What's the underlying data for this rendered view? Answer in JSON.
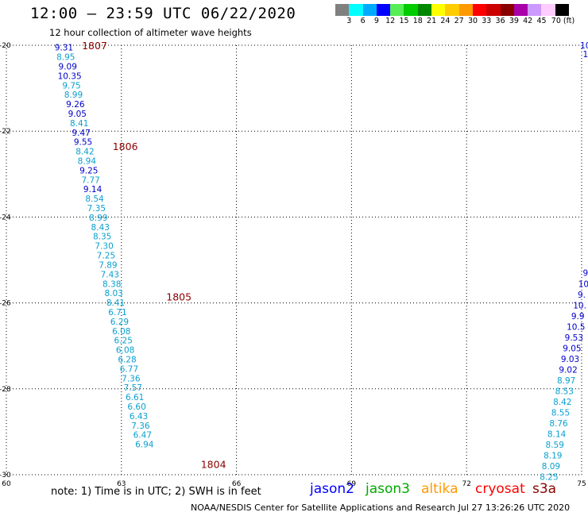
{
  "header": {
    "title": "12:00 – 23:59 UTC 06/22/2020",
    "subtitle": "12 hour collection of altimeter wave heights"
  },
  "colorbar": {
    "colors": [
      "#808080",
      "#00ffff",
      "#00aaff",
      "#0000ff",
      "#55ee55",
      "#00cc00",
      "#008800",
      "#ffff00",
      "#ffcc00",
      "#ff9900",
      "#ff0000",
      "#cc0000",
      "#880000",
      "#aa00aa",
      "#cc99ff",
      "#ffccff",
      "#000000"
    ],
    "labels": [
      "3",
      "6",
      "9",
      "12",
      "15",
      "18",
      "21",
      "24",
      "27",
      "30",
      "33",
      "36",
      "39",
      "42",
      "45",
      "70 (ft)"
    ]
  },
  "map": {
    "x_ticks": [
      "60",
      "63",
      "66",
      "69",
      "72",
      "75"
    ],
    "y_ticks": [
      "-20",
      "-22",
      "-24",
      "-26",
      "-28",
      "-30"
    ],
    "x_values": [
      60,
      63,
      66,
      69,
      72,
      75
    ],
    "y_values": [
      -20,
      -22,
      -24,
      -26,
      -28,
      -30
    ],
    "lon_range": [
      60,
      75
    ],
    "lat_range": [
      -30,
      -20
    ],
    "colors": {
      "jason2": "#0000cc",
      "jason3": "#0aa0ce",
      "cryosat": "#8b0000"
    },
    "track_west": [
      {
        "lon": 61.5,
        "lat": -20.05,
        "v": "9.31",
        "s": "jason2"
      },
      {
        "lon": 61.55,
        "lat": -20.27,
        "v": "8.95",
        "s": "jason3"
      },
      {
        "lon": 61.6,
        "lat": -20.49,
        "v": "9.09",
        "s": "jason2"
      },
      {
        "lon": 61.65,
        "lat": -20.71,
        "v": "10.35",
        "s": "jason2"
      },
      {
        "lon": 61.7,
        "lat": -20.93,
        "v": "9.75",
        "s": "jason3"
      },
      {
        "lon": 61.75,
        "lat": -21.15,
        "v": "8.99",
        "s": "jason3"
      },
      {
        "lon": 61.8,
        "lat": -21.37,
        "v": "9.26",
        "s": "jason2"
      },
      {
        "lon": 61.85,
        "lat": -21.59,
        "v": "9.05",
        "s": "jason2"
      },
      {
        "lon": 61.9,
        "lat": -21.81,
        "v": "8.41",
        "s": "jason3"
      },
      {
        "lon": 61.95,
        "lat": -22.03,
        "v": "9.47",
        "s": "jason2"
      },
      {
        "lon": 62.0,
        "lat": -22.25,
        "v": "9.55",
        "s": "jason2"
      },
      {
        "lon": 62.05,
        "lat": -22.47,
        "v": "8.42",
        "s": "jason3"
      },
      {
        "lon": 62.1,
        "lat": -22.69,
        "v": "8.94",
        "s": "jason3"
      },
      {
        "lon": 62.15,
        "lat": -22.91,
        "v": "9.25",
        "s": "jason2"
      },
      {
        "lon": 62.2,
        "lat": -23.13,
        "v": "7.77",
        "s": "jason3"
      },
      {
        "lon": 62.25,
        "lat": -23.35,
        "v": "9.14",
        "s": "jason2"
      },
      {
        "lon": 62.3,
        "lat": -23.57,
        "v": "8.54",
        "s": "jason3"
      },
      {
        "lon": 62.35,
        "lat": -23.79,
        "v": "7.35",
        "s": "jason3"
      },
      {
        "lon": 62.4,
        "lat": -24.01,
        "v": "8.99",
        "s": "jason3"
      },
      {
        "lon": 62.45,
        "lat": -24.23,
        "v": "8.43",
        "s": "jason3"
      },
      {
        "lon": 62.5,
        "lat": -24.45,
        "v": "8.35",
        "s": "jason3"
      },
      {
        "lon": 62.55,
        "lat": -24.67,
        "v": "7.30",
        "s": "jason3"
      },
      {
        "lon": 62.6,
        "lat": -24.89,
        "v": "7.25",
        "s": "jason3"
      },
      {
        "lon": 62.65,
        "lat": -25.11,
        "v": "7.89",
        "s": "jason3"
      },
      {
        "lon": 62.7,
        "lat": -25.33,
        "v": "7.43",
        "s": "jason3"
      },
      {
        "lon": 62.75,
        "lat": -25.55,
        "v": "8.38",
        "s": "jason3"
      },
      {
        "lon": 62.8,
        "lat": -25.77,
        "v": "8.03",
        "s": "jason3"
      },
      {
        "lon": 62.85,
        "lat": -25.99,
        "v": "8.41",
        "s": "jason3"
      },
      {
        "lon": 62.9,
        "lat": -26.21,
        "v": "6.71",
        "s": "jason3"
      },
      {
        "lon": 62.95,
        "lat": -26.43,
        "v": "6.29",
        "s": "jason3"
      },
      {
        "lon": 63.0,
        "lat": -26.65,
        "v": "6.08",
        "s": "jason3"
      },
      {
        "lon": 63.05,
        "lat": -26.87,
        "v": "6.25",
        "s": "jason3"
      },
      {
        "lon": 63.1,
        "lat": -27.09,
        "v": "6.08",
        "s": "jason3"
      },
      {
        "lon": 63.15,
        "lat": -27.31,
        "v": "6.28",
        "s": "jason3"
      },
      {
        "lon": 63.2,
        "lat": -27.53,
        "v": "6.77",
        "s": "jason3"
      },
      {
        "lon": 63.25,
        "lat": -27.75,
        "v": "7.36",
        "s": "jason3"
      },
      {
        "lon": 63.3,
        "lat": -27.97,
        "v": "7.57",
        "s": "jason3"
      },
      {
        "lon": 63.35,
        "lat": -28.19,
        "v": "6.61",
        "s": "jason3"
      },
      {
        "lon": 63.4,
        "lat": -28.41,
        "v": "6.60",
        "s": "jason3"
      },
      {
        "lon": 63.45,
        "lat": -28.63,
        "v": "6.43",
        "s": "jason3"
      },
      {
        "lon": 63.5,
        "lat": -28.85,
        "v": "7.36",
        "s": "jason3"
      },
      {
        "lon": 63.55,
        "lat": -29.07,
        "v": "6.47",
        "s": "jason3"
      },
      {
        "lon": 63.6,
        "lat": -29.29,
        "v": "6.94",
        "s": "jason3"
      }
    ],
    "track_east": [
      {
        "lon": 75.1,
        "lat": -20.0,
        "v": "10",
        "s": "jason2"
      },
      {
        "lon": 75.1,
        "lat": -20.2,
        "v": "1",
        "s": "jason2"
      },
      {
        "lon": 75.1,
        "lat": -25.3,
        "v": "9",
        "s": "jason2"
      },
      {
        "lon": 75.05,
        "lat": -25.55,
        "v": "10",
        "s": "jason2"
      },
      {
        "lon": 75.0,
        "lat": -25.8,
        "v": "9.",
        "s": "jason2"
      },
      {
        "lon": 74.95,
        "lat": -26.05,
        "v": "10.",
        "s": "jason2"
      },
      {
        "lon": 74.9,
        "lat": -26.3,
        "v": "9.9",
        "s": "jason2"
      },
      {
        "lon": 74.85,
        "lat": -26.55,
        "v": "10.5",
        "s": "jason2"
      },
      {
        "lon": 74.8,
        "lat": -26.8,
        "v": "9.53",
        "s": "jason2"
      },
      {
        "lon": 74.75,
        "lat": -27.05,
        "v": "9.05",
        "s": "jason2"
      },
      {
        "lon": 74.7,
        "lat": -27.3,
        "v": "9.03",
        "s": "jason2"
      },
      {
        "lon": 74.65,
        "lat": -27.55,
        "v": "9.02",
        "s": "jason2"
      },
      {
        "lon": 74.6,
        "lat": -27.8,
        "v": "8.97",
        "s": "jason3"
      },
      {
        "lon": 74.55,
        "lat": -28.05,
        "v": "8.53",
        "s": "jason3"
      },
      {
        "lon": 74.5,
        "lat": -28.3,
        "v": "8.42",
        "s": "jason3"
      },
      {
        "lon": 74.45,
        "lat": -28.55,
        "v": "8.55",
        "s": "jason3"
      },
      {
        "lon": 74.4,
        "lat": -28.8,
        "v": "8.76",
        "s": "jason3"
      },
      {
        "lon": 74.35,
        "lat": -29.05,
        "v": "8.14",
        "s": "jason3"
      },
      {
        "lon": 74.3,
        "lat": -29.3,
        "v": "8.59",
        "s": "jason3"
      },
      {
        "lon": 74.25,
        "lat": -29.55,
        "v": "8.19",
        "s": "jason3"
      },
      {
        "lon": 74.2,
        "lat": -29.8,
        "v": "8.09",
        "s": "jason3"
      },
      {
        "lon": 74.15,
        "lat": -30.05,
        "v": "8.25",
        "s": "jason3"
      }
    ],
    "time_labels": [
      {
        "lon": 62.3,
        "lat": -20.0,
        "t": "1807"
      },
      {
        "lon": 63.1,
        "lat": -22.35,
        "t": "1806"
      },
      {
        "lon": 64.5,
        "lat": -25.85,
        "t": "1805"
      },
      {
        "lon": 65.4,
        "lat": -29.75,
        "t": "1804"
      }
    ]
  },
  "footer": {
    "note": "note: 1) Time is in UTC; 2) SWH is in feet",
    "legend": [
      {
        "name": "jason2",
        "color": "#0000ff"
      },
      {
        "name": "jason3",
        "color": "#00aa00"
      },
      {
        "name": "altika",
        "color": "#ff9900"
      },
      {
        "name": "cryosat",
        "color": "#ff0000"
      },
      {
        "name": "s3a",
        "color": "#8b0000"
      }
    ],
    "credit": "NOAA/NESDIS Center for Satellite Applications and Research    Jul 27 13:26:26 UTC 2020"
  }
}
